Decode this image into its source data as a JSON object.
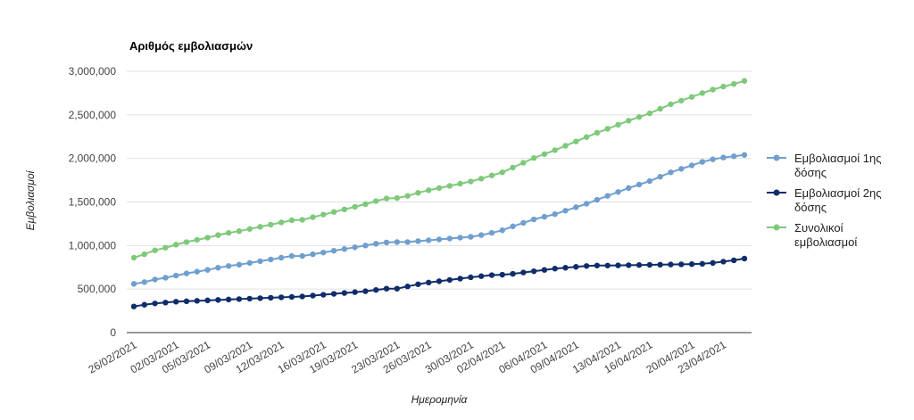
{
  "chart_data": {
    "type": "line",
    "title": "Αριθμός εμβολιασμών",
    "xlabel": "Ημερομηνία",
    "ylabel": "Εμβολιασμοί",
    "ylim": [
      0,
      3000000
    ],
    "y_ticks": [
      0,
      500000,
      1000000,
      1500000,
      2000000,
      2500000,
      3000000
    ],
    "y_tick_labels": [
      "0",
      "500,000",
      "1,000,000",
      "1,500,000",
      "2,000,000",
      "2,500,000",
      "3,000,000"
    ],
    "x_tick_labels": [
      "26/02/2021",
      "02/03/2021",
      "05/03/2021",
      "09/03/2021",
      "12/03/2021",
      "16/03/2021",
      "19/03/2021",
      "23/03/2021",
      "26/03/2021",
      "30/03/2021",
      "02/04/2021",
      "06/04/2021",
      "09/04/2021",
      "13/04/2021",
      "16/04/2021",
      "20/04/2021",
      "23/04/2021"
    ],
    "grid": true,
    "legend_position": "right",
    "x": [
      "26/02/2021",
      "27/02/2021",
      "28/02/2021",
      "01/03/2021",
      "02/03/2021",
      "03/03/2021",
      "04/03/2021",
      "05/03/2021",
      "06/03/2021",
      "07/03/2021",
      "08/03/2021",
      "09/03/2021",
      "10/03/2021",
      "11/03/2021",
      "12/03/2021",
      "13/03/2021",
      "14/03/2021",
      "15/03/2021",
      "16/03/2021",
      "17/03/2021",
      "18/03/2021",
      "19/03/2021",
      "20/03/2021",
      "21/03/2021",
      "22/03/2021",
      "23/03/2021",
      "24/03/2021",
      "25/03/2021",
      "26/03/2021",
      "27/03/2021",
      "28/03/2021",
      "29/03/2021",
      "30/03/2021",
      "31/03/2021",
      "01/04/2021",
      "02/04/2021",
      "03/04/2021",
      "04/04/2021",
      "05/04/2021",
      "06/04/2021",
      "07/04/2021",
      "08/04/2021",
      "09/04/2021",
      "10/04/2021",
      "11/04/2021",
      "12/04/2021",
      "13/04/2021",
      "14/04/2021",
      "15/04/2021",
      "16/04/2021",
      "17/04/2021",
      "18/04/2021",
      "19/04/2021",
      "20/04/2021",
      "21/04/2021",
      "22/04/2021",
      "23/04/2021",
      "24/04/2021",
      "25/04/2021"
    ],
    "series": [
      {
        "name": "Εμβολιασμοί 1ης δόσης",
        "color": "#6f9fcf",
        "values": [
          560000,
          580000,
          610000,
          630000,
          655000,
          680000,
          700000,
          720000,
          745000,
          765000,
          780000,
          800000,
          820000,
          840000,
          860000,
          880000,
          880000,
          900000,
          920000,
          940000,
          960000,
          980000,
          1000000,
          1020000,
          1035000,
          1040000,
          1040000,
          1050000,
          1060000,
          1070000,
          1080000,
          1090000,
          1100000,
          1120000,
          1145000,
          1175000,
          1220000,
          1260000,
          1300000,
          1330000,
          1360000,
          1400000,
          1440000,
          1480000,
          1525000,
          1570000,
          1615000,
          1660000,
          1700000,
          1740000,
          1790000,
          1840000,
          1880000,
          1920000,
          1960000,
          1990000,
          2010000,
          2025000,
          2040000
        ]
      },
      {
        "name": "Εμβολιασμοί 2ης δόσης",
        "color": "#0f2d6b",
        "values": [
          300000,
          320000,
          335000,
          345000,
          355000,
          360000,
          365000,
          370000,
          375000,
          380000,
          385000,
          390000,
          395000,
          400000,
          405000,
          410000,
          415000,
          425000,
          435000,
          445000,
          455000,
          465000,
          475000,
          490000,
          505000,
          505000,
          530000,
          555000,
          575000,
          590000,
          605000,
          620000,
          635000,
          648000,
          660000,
          665000,
          675000,
          690000,
          705000,
          720000,
          735000,
          745000,
          755000,
          765000,
          770000,
          770000,
          772000,
          774000,
          776000,
          778000,
          780000,
          782000,
          784000,
          786000,
          790000,
          800000,
          815000,
          830000,
          850000
        ]
      },
      {
        "name": "Συνολικοί εμβολιασμοί",
        "color": "#7ec97a",
        "values": [
          860000,
          900000,
          945000,
          975000,
          1010000,
          1040000,
          1065000,
          1090000,
          1120000,
          1145000,
          1165000,
          1190000,
          1215000,
          1240000,
          1265000,
          1290000,
          1295000,
          1325000,
          1355000,
          1385000,
          1415000,
          1445000,
          1475000,
          1510000,
          1540000,
          1545000,
          1570000,
          1605000,
          1635000,
          1660000,
          1685000,
          1710000,
          1735000,
          1768000,
          1805000,
          1840000,
          1895000,
          1950000,
          2005000,
          2050000,
          2095000,
          2145000,
          2195000,
          2245000,
          2295000,
          2340000,
          2387000,
          2434000,
          2476000,
          2518000,
          2570000,
          2622000,
          2664000,
          2706000,
          2750000,
          2790000,
          2825000,
          2855000,
          2890000
        ]
      }
    ]
  }
}
